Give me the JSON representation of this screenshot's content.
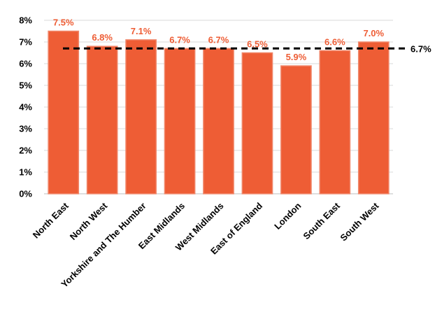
{
  "chart_data": {
    "type": "bar",
    "categories": [
      "North East",
      "North West",
      "Yorkshire and The Humber",
      "East Midlands",
      "West Midlands",
      "East of England",
      "London",
      "South East",
      "South West"
    ],
    "values": [
      7.5,
      6.8,
      7.1,
      6.7,
      6.7,
      6.5,
      5.9,
      6.6,
      7.0
    ],
    "data_labels": [
      "7.5%",
      "6.8%",
      "7.1%",
      "6.7%",
      "6.7%",
      "6.5%",
      "5.9%",
      "6.6%",
      "7.0%"
    ],
    "y_ticks": [
      "0%",
      "1%",
      "2%",
      "3%",
      "4%",
      "5%",
      "6%",
      "7%",
      "8%"
    ],
    "ylim": [
      0,
      8
    ],
    "reference_line": {
      "value": 6.7,
      "label": "6.7%",
      "style": "dashed"
    },
    "grid": true,
    "title": "",
    "xlabel": "",
    "ylabel": "",
    "colors": {
      "bar": "#EE5D35",
      "bar_edge": "#F0876A",
      "data_label": "#EE5D35",
      "gridline": "#D9D9D9",
      "reference_line": "#000000"
    }
  }
}
